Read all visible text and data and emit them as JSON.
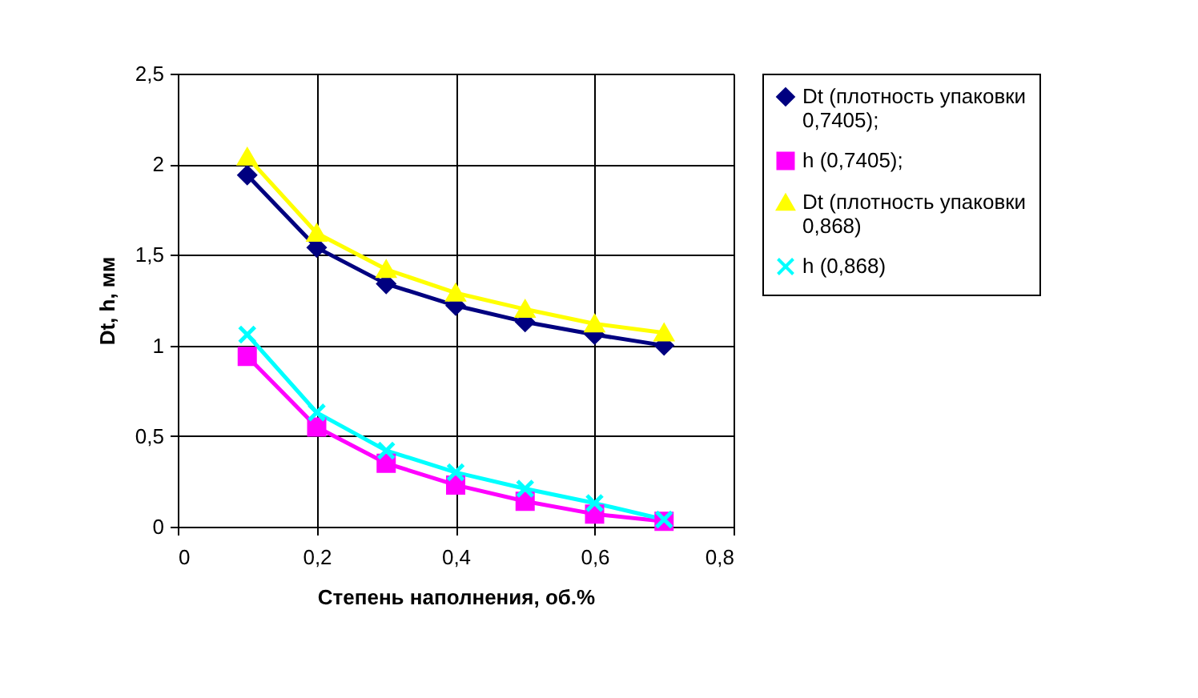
{
  "chart_data": {
    "type": "line",
    "xlabel": "Степень наполнения, об.%",
    "ylabel": "Dt, h, мм",
    "x": [
      0.1,
      0.2,
      0.3,
      0.4,
      0.5,
      0.6,
      0.7
    ],
    "xlim": [
      0,
      0.8
    ],
    "xticks": [
      0,
      {
        "value": 0.2,
        "label": "0,2"
      },
      {
        "value": 0.4,
        "label": "0,4"
      },
      {
        "value": 0.6,
        "label": "0,6"
      },
      {
        "value": 0.8,
        "label": "0,8"
      }
    ],
    "ylim": [
      0,
      2.5
    ],
    "yticks": [
      0,
      {
        "value": 0.5,
        "label": "0,5"
      },
      1,
      {
        "value": 1.5,
        "label": "1,5"
      },
      2,
      {
        "value": 2.5,
        "label": "2,5"
      }
    ],
    "grid": true,
    "legend": "right",
    "series": [
      {
        "name": "Dt (плотность упаковки 0,7405);",
        "color": "#000080",
        "marker": "diamond",
        "values": [
          1.94,
          1.54,
          1.34,
          1.22,
          1.13,
          1.06,
          1.0
        ]
      },
      {
        "name": "h (0,7405);",
        "color": "#ff00ff",
        "marker": "square",
        "values": [
          0.94,
          0.55,
          0.35,
          0.23,
          0.14,
          0.07,
          0.03
        ]
      },
      {
        "name": "Dt (плотность упаковки 0,868)",
        "color": "#ffff00",
        "marker": "triangle",
        "values": [
          2.04,
          1.62,
          1.42,
          1.29,
          1.2,
          1.12,
          1.07
        ]
      },
      {
        "name": "h (0,868)",
        "color": "#00ffff",
        "marker": "cross",
        "values": [
          1.06,
          0.63,
          0.42,
          0.3,
          0.21,
          0.13,
          0.04
        ]
      }
    ]
  }
}
